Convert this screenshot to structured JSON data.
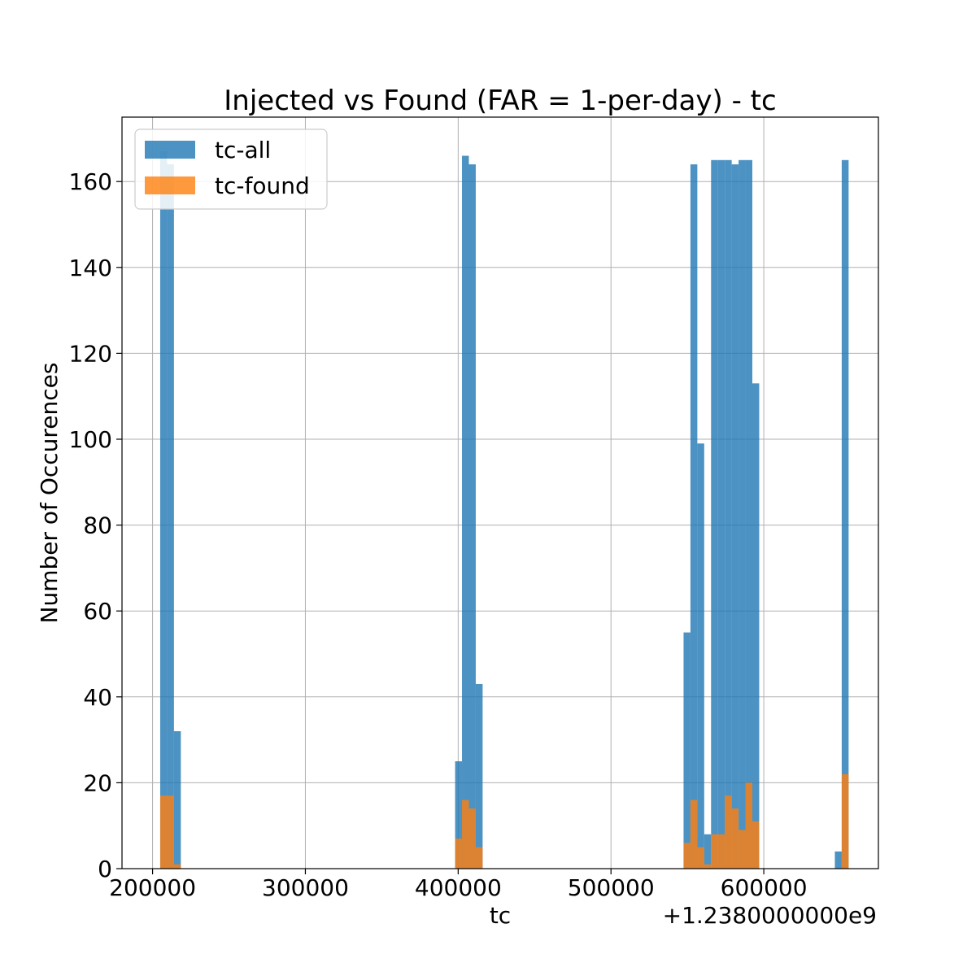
{
  "chart_data": {
    "type": "bar",
    "title": "Injected vs Found (FAR = 1-per-day) - tc",
    "xlabel": "tc",
    "ylabel": "Number of Occurences",
    "offset_text": "+1.2380000000e9",
    "xlim": [
      180000,
      675000
    ],
    "ylim": [
      0,
      175
    ],
    "xticks": [
      200000,
      300000,
      400000,
      500000,
      600000
    ],
    "xtick_labels": [
      "200000",
      "300000",
      "400000",
      "500000",
      "600000"
    ],
    "yticks": [
      0,
      20,
      40,
      60,
      80,
      100,
      120,
      140,
      160
    ],
    "ytick_labels": [
      "0",
      "20",
      "40",
      "60",
      "80",
      "100",
      "120",
      "140",
      "160"
    ],
    "grid": true,
    "legend_position": "upper-left",
    "bin_width": 4500,
    "series": [
      {
        "name": "tc-all",
        "color": "#1f77b4",
        "alpha": 0.8,
        "bins": [
          {
            "x": 205000,
            "value": 167
          },
          {
            "x": 209500,
            "value": 164
          },
          {
            "x": 214000,
            "value": 32
          },
          {
            "x": 398000,
            "value": 25
          },
          {
            "x": 402500,
            "value": 166
          },
          {
            "x": 407000,
            "value": 164
          },
          {
            "x": 411500,
            "value": 43
          },
          {
            "x": 547500,
            "value": 55
          },
          {
            "x": 552000,
            "value": 164
          },
          {
            "x": 556500,
            "value": 99
          },
          {
            "x": 561000,
            "value": 8
          },
          {
            "x": 565500,
            "value": 165
          },
          {
            "x": 570000,
            "value": 165
          },
          {
            "x": 574500,
            "value": 165
          },
          {
            "x": 579000,
            "value": 164
          },
          {
            "x": 583500,
            "value": 165
          },
          {
            "x": 588000,
            "value": 165
          },
          {
            "x": 592500,
            "value": 113
          },
          {
            "x": 646500,
            "value": 4
          },
          {
            "x": 651000,
            "value": 165
          }
        ]
      },
      {
        "name": "tc-found",
        "color": "#ff7f0e",
        "alpha": 0.8,
        "bins": [
          {
            "x": 205000,
            "value": 17
          },
          {
            "x": 209500,
            "value": 17
          },
          {
            "x": 214000,
            "value": 1
          },
          {
            "x": 398000,
            "value": 7
          },
          {
            "x": 402500,
            "value": 16
          },
          {
            "x": 407000,
            "value": 14
          },
          {
            "x": 411500,
            "value": 5
          },
          {
            "x": 547500,
            "value": 6
          },
          {
            "x": 552000,
            "value": 16
          },
          {
            "x": 556500,
            "value": 5
          },
          {
            "x": 561000,
            "value": 1
          },
          {
            "x": 565500,
            "value": 8
          },
          {
            "x": 570000,
            "value": 8
          },
          {
            "x": 574500,
            "value": 17
          },
          {
            "x": 579000,
            "value": 14
          },
          {
            "x": 583500,
            "value": 9
          },
          {
            "x": 588000,
            "value": 20
          },
          {
            "x": 592500,
            "value": 11
          },
          {
            "x": 646500,
            "value": 0
          },
          {
            "x": 651000,
            "value": 22
          }
        ]
      }
    ]
  }
}
